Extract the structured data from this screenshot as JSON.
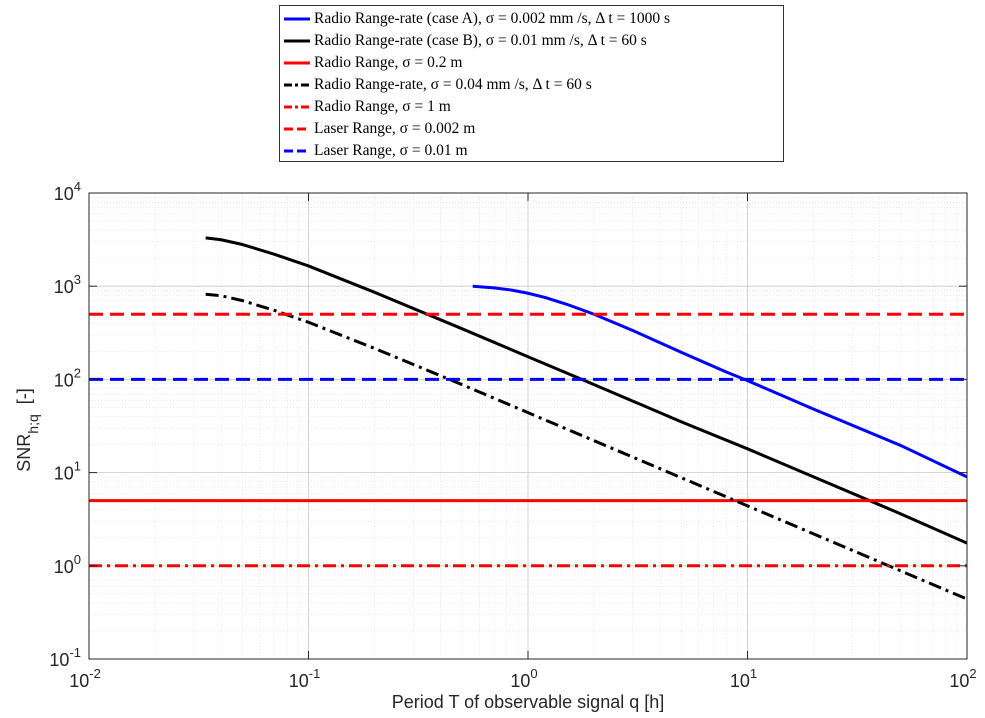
{
  "chart_data": {
    "type": "line",
    "title": "",
    "xlabel": "Period T of observable signal q [h]",
    "ylabel": {
      "main": "SNR",
      "sub": "h;q",
      "suffix": "[-]"
    },
    "xscale": "log",
    "yscale": "log",
    "xlim": [
      0.01,
      100
    ],
    "ylim": [
      0.1,
      10000
    ],
    "grid": true,
    "minor_grid": true,
    "legend_position": "top (outside, above axes)",
    "x_ticks": [
      {
        "base": "10",
        "exp": "-2",
        "value": 0.01
      },
      {
        "base": "10",
        "exp": "-1",
        "value": 0.1
      },
      {
        "base": "10",
        "exp": "0",
        "value": 1
      },
      {
        "base": "10",
        "exp": "1",
        "value": 10
      },
      {
        "base": "10",
        "exp": "2",
        "value": 100
      }
    ],
    "y_ticks": [
      {
        "base": "10",
        "exp": "-1",
        "value": 0.1
      },
      {
        "base": "10",
        "exp": "0",
        "value": 1
      },
      {
        "base": "10",
        "exp": "1",
        "value": 10
      },
      {
        "base": "10",
        "exp": "2",
        "value": 100
      },
      {
        "base": "10",
        "exp": "3",
        "value": 1000
      },
      {
        "base": "10",
        "exp": "4",
        "value": 10000
      }
    ],
    "series": [
      {
        "name": "Radio Range-rate (case A), σ = 0.002 mm /s, Δ t = 1000 s",
        "color": "#0000ff",
        "style": "solid",
        "x": [
          0.56,
          0.7,
          0.85,
          1.0,
          1.2,
          1.5,
          2,
          3,
          5,
          8,
          10,
          20,
          50,
          100
        ],
        "y": [
          1000,
          960,
          905,
          840,
          755,
          640,
          500,
          335,
          195,
          120,
          97,
          48,
          19.5,
          9
        ]
      },
      {
        "name": "Radio Range-rate (case B), σ = 0.01 mm /s, Δ t = 60 s",
        "color": "#000000",
        "style": "solid",
        "x": [
          0.034,
          0.04,
          0.05,
          0.07,
          0.1,
          0.2,
          0.5,
          1,
          2,
          5,
          10,
          20,
          50,
          100
        ],
        "y": [
          3300,
          3150,
          2800,
          2200,
          1650,
          860,
          350,
          175,
          88,
          35,
          18,
          9,
          3.6,
          1.75
        ]
      },
      {
        "name": "Radio Range, σ = 0.2 m",
        "color": "#ff0000",
        "style": "solid",
        "x": [
          0.01,
          100
        ],
        "y": [
          5,
          5
        ]
      },
      {
        "name": "Radio Range-rate, σ = 0.04 mm /s, Δ t = 60 s",
        "color": "#000000",
        "style": "dashdot",
        "x": [
          0.034,
          0.04,
          0.05,
          0.07,
          0.1,
          0.2,
          0.5,
          1,
          2,
          5,
          10,
          20,
          50,
          100
        ],
        "y": [
          820,
          790,
          700,
          550,
          410,
          215,
          88,
          44,
          22,
          8.8,
          4.4,
          2.2,
          0.88,
          0.44
        ]
      },
      {
        "name": "Radio Range, σ = 1 m",
        "color": "#ff0000",
        "style": "dashdot",
        "x": [
          0.01,
          100
        ],
        "y": [
          1,
          1
        ]
      },
      {
        "name": "Laser Range, σ = 0.002 m",
        "color": "#ff0000",
        "style": "dashed",
        "x": [
          0.01,
          100
        ],
        "y": [
          500,
          500
        ]
      },
      {
        "name": "Laser Range, σ = 0.01 m",
        "color": "#0000ff",
        "style": "dashed",
        "x": [
          0.01,
          100
        ],
        "y": [
          100,
          100
        ]
      }
    ]
  }
}
